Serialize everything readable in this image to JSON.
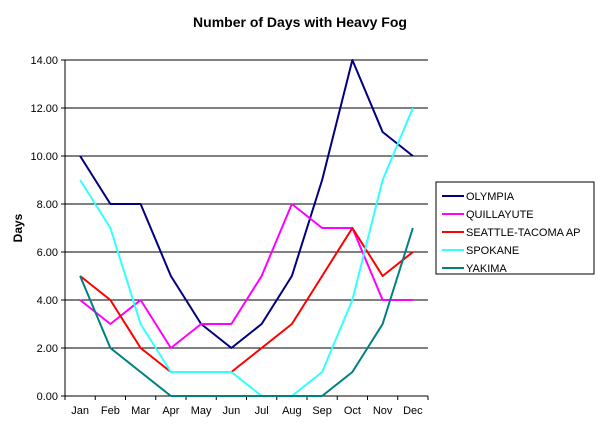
{
  "chart_data": {
    "type": "line",
    "title": "Number of Days with Heavy Fog",
    "xlabel": "",
    "ylabel": "Days",
    "ylim": [
      0,
      14
    ],
    "yticks": [
      "0.00",
      "2.00",
      "4.00",
      "6.00",
      "8.00",
      "10.00",
      "12.00",
      "14.00"
    ],
    "grid": true,
    "legend_position": "right",
    "categories": [
      "Jan",
      "Feb",
      "Mar",
      "Apr",
      "May",
      "Jun",
      "Jul",
      "Aug",
      "Sep",
      "Oct",
      "Nov",
      "Dec"
    ],
    "series": [
      {
        "name": "OLYMPIA",
        "color": "#000080",
        "values": [
          10,
          8,
          8,
          5,
          3,
          2,
          3,
          5,
          9,
          14,
          11,
          10
        ]
      },
      {
        "name": "QUILLAYUTE",
        "color": "#ff00ff",
        "values": [
          4,
          3,
          4,
          2,
          3,
          3,
          5,
          8,
          7,
          7,
          4,
          4
        ]
      },
      {
        "name": "SEATTLE-TACOMA AP",
        "color": "#ff0000",
        "values": [
          5,
          4,
          2,
          1,
          null,
          1,
          2,
          3,
          5,
          7,
          5,
          6
        ]
      },
      {
        "name": "SPOKANE",
        "color": "#33ffff",
        "values": [
          9,
          7,
          3,
          1,
          1,
          1,
          0,
          0,
          1,
          4,
          9,
          12
        ]
      },
      {
        "name": "YAKIMA",
        "color": "#008080",
        "values": [
          5,
          2,
          1,
          0,
          0,
          0,
          0,
          0,
          0,
          1,
          3,
          7
        ]
      }
    ]
  }
}
